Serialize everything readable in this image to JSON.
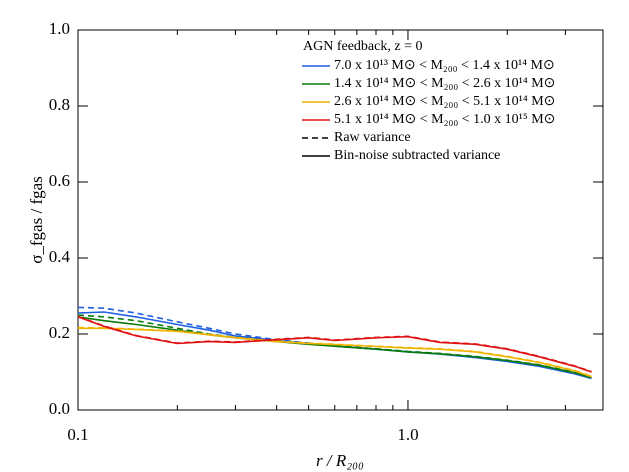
{
  "chart_data": {
    "type": "line",
    "xlabel": "r / R₂₀₀",
    "ylabel": "σ_fgas / fgas",
    "legend_title": "AGN feedback, z = 0",
    "x": [
      0.1,
      0.12,
      0.15,
      0.2,
      0.25,
      0.3,
      0.4,
      0.5,
      0.6,
      0.8,
      1.0,
      1.25,
      1.6,
      2.0,
      2.5,
      3.2,
      3.6
    ],
    "series": [
      {
        "name": "7.0 x 10¹³ M⊙ < M₂₀₀ < 1.4 x 10¹⁴ M⊙",
        "color": "#1f5fe0",
        "values": [
          0.255,
          0.258,
          0.245,
          0.225,
          0.21,
          0.195,
          0.183,
          0.175,
          0.168,
          0.16,
          0.153,
          0.147,
          0.138,
          0.128,
          0.115,
          0.095,
          0.083
        ],
        "raw_values": [
          0.27,
          0.268,
          0.255,
          0.232,
          0.215,
          0.2,
          0.185,
          0.176,
          0.169,
          0.161,
          0.154,
          0.148,
          0.139,
          0.129,
          0.116,
          0.096,
          0.084
        ]
      },
      {
        "name": "1.4 x 10¹⁴ M⊙ < M₂₀₀ < 2.6 x 10¹⁴ M⊙",
        "color": "#0a7a0a",
        "values": [
          0.245,
          0.235,
          0.225,
          0.21,
          0.198,
          0.19,
          0.18,
          0.173,
          0.168,
          0.16,
          0.153,
          0.148,
          0.14,
          0.13,
          0.118,
          0.098,
          0.085
        ],
        "raw_values": [
          0.25,
          0.245,
          0.235,
          0.215,
          0.2,
          0.191,
          0.181,
          0.174,
          0.169,
          0.161,
          0.154,
          0.149,
          0.141,
          0.131,
          0.119,
          0.099,
          0.086
        ]
      },
      {
        "name": "2.6 x 10¹⁴ M⊙ < M₂₀₀ < 5.1 x 10¹⁴ M⊙",
        "color": "#f0b400",
        "values": [
          0.215,
          0.215,
          0.212,
          0.207,
          0.198,
          0.19,
          0.18,
          0.175,
          0.172,
          0.167,
          0.163,
          0.16,
          0.153,
          0.14,
          0.125,
          0.103,
          0.088
        ],
        "raw_values": [
          0.217,
          0.216,
          0.213,
          0.208,
          0.199,
          0.191,
          0.181,
          0.176,
          0.173,
          0.168,
          0.164,
          0.161,
          0.154,
          0.141,
          0.126,
          0.104,
          0.089
        ]
      },
      {
        "name": "5.1 x 10¹⁴ M⊙ < M₂₀₀ < 1.0 x 10¹⁵ M⊙",
        "color": "#e01010",
        "values": [
          0.245,
          0.22,
          0.195,
          0.175,
          0.18,
          0.178,
          0.185,
          0.19,
          0.183,
          0.19,
          0.193,
          0.178,
          0.173,
          0.16,
          0.14,
          0.115,
          0.1
        ],
        "raw_values": [
          0.246,
          0.221,
          0.196,
          0.176,
          0.181,
          0.179,
          0.186,
          0.191,
          0.184,
          0.191,
          0.194,
          0.179,
          0.174,
          0.161,
          0.141,
          0.116,
          0.101
        ]
      }
    ],
    "line_styles": [
      {
        "name": "Raw variance",
        "dash": true
      },
      {
        "name": "Bin-noise subtracted variance",
        "dash": false
      }
    ],
    "xscale": "log",
    "xlim": [
      0.1,
      3.9
    ],
    "xticks": [
      0.1,
      {
        "value": 1,
        "label": "1.0"
      }
    ],
    "xminor_ticks": [
      0.2,
      0.3,
      0.4,
      0.5,
      0.6,
      0.7,
      0.8,
      0.9,
      2,
      3
    ],
    "ylim": [
      0,
      1
    ],
    "yticks": [
      {
        "value": 0,
        "label": "0.0"
      },
      {
        "value": 0.2,
        "label": "0.2"
      },
      {
        "value": 0.4,
        "label": "0.4"
      },
      {
        "value": 0.6,
        "label": "0.6"
      },
      {
        "value": 0.8,
        "label": "0.8"
      },
      {
        "value": 1,
        "label": "1.0"
      }
    ],
    "legend": "upper right"
  }
}
